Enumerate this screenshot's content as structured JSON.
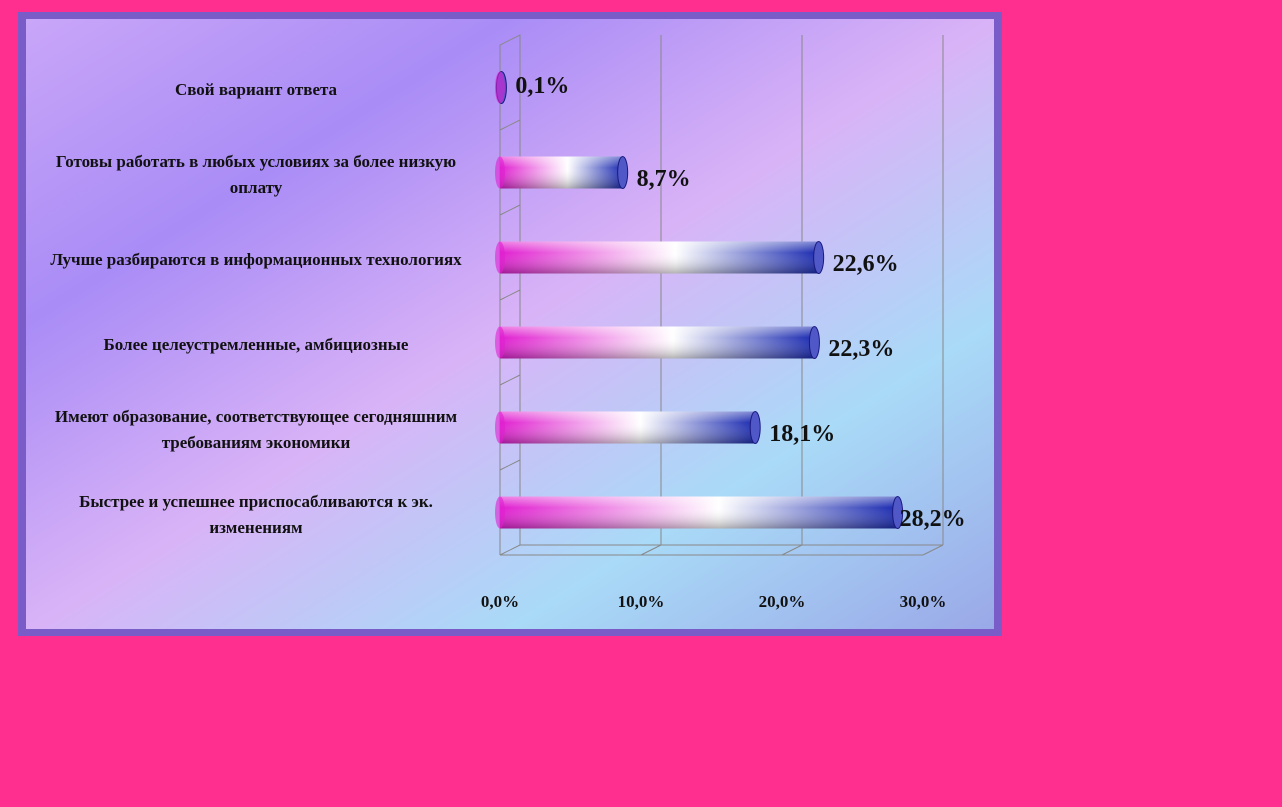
{
  "chart_data": {
    "type": "bar",
    "orientation": "horizontal",
    "categories": [
      "Свой вариант ответа",
      "Готовы работать в любых условиях за более низкую оплату",
      "Лучше разбираются в информационных технологиях",
      "Более целеустремленные, амбициозные",
      "Имеют образование, соответствующее сегодняшним требованиям экономики",
      "Быстрее и успешнее приспосабливаются к эк. изменениям"
    ],
    "values": [
      0.1,
      8.7,
      22.6,
      22.3,
      18.1,
      28.2
    ],
    "value_labels": [
      "0,1%",
      "8,7%",
      "22,6%",
      "22,3%",
      "18,1%",
      "28,2%"
    ],
    "xlim": [
      0,
      30
    ],
    "xticks": [
      {
        "value": 0,
        "label": "0,0%"
      },
      {
        "value": 10,
        "label": "10,0%"
      },
      {
        "value": 20,
        "label": "20,0%"
      },
      {
        "value": 30,
        "label": "30,0%"
      }
    ],
    "grid": true,
    "colors": [
      "#e020d0",
      "#ffffff",
      "#1a2ab0"
    ]
  }
}
